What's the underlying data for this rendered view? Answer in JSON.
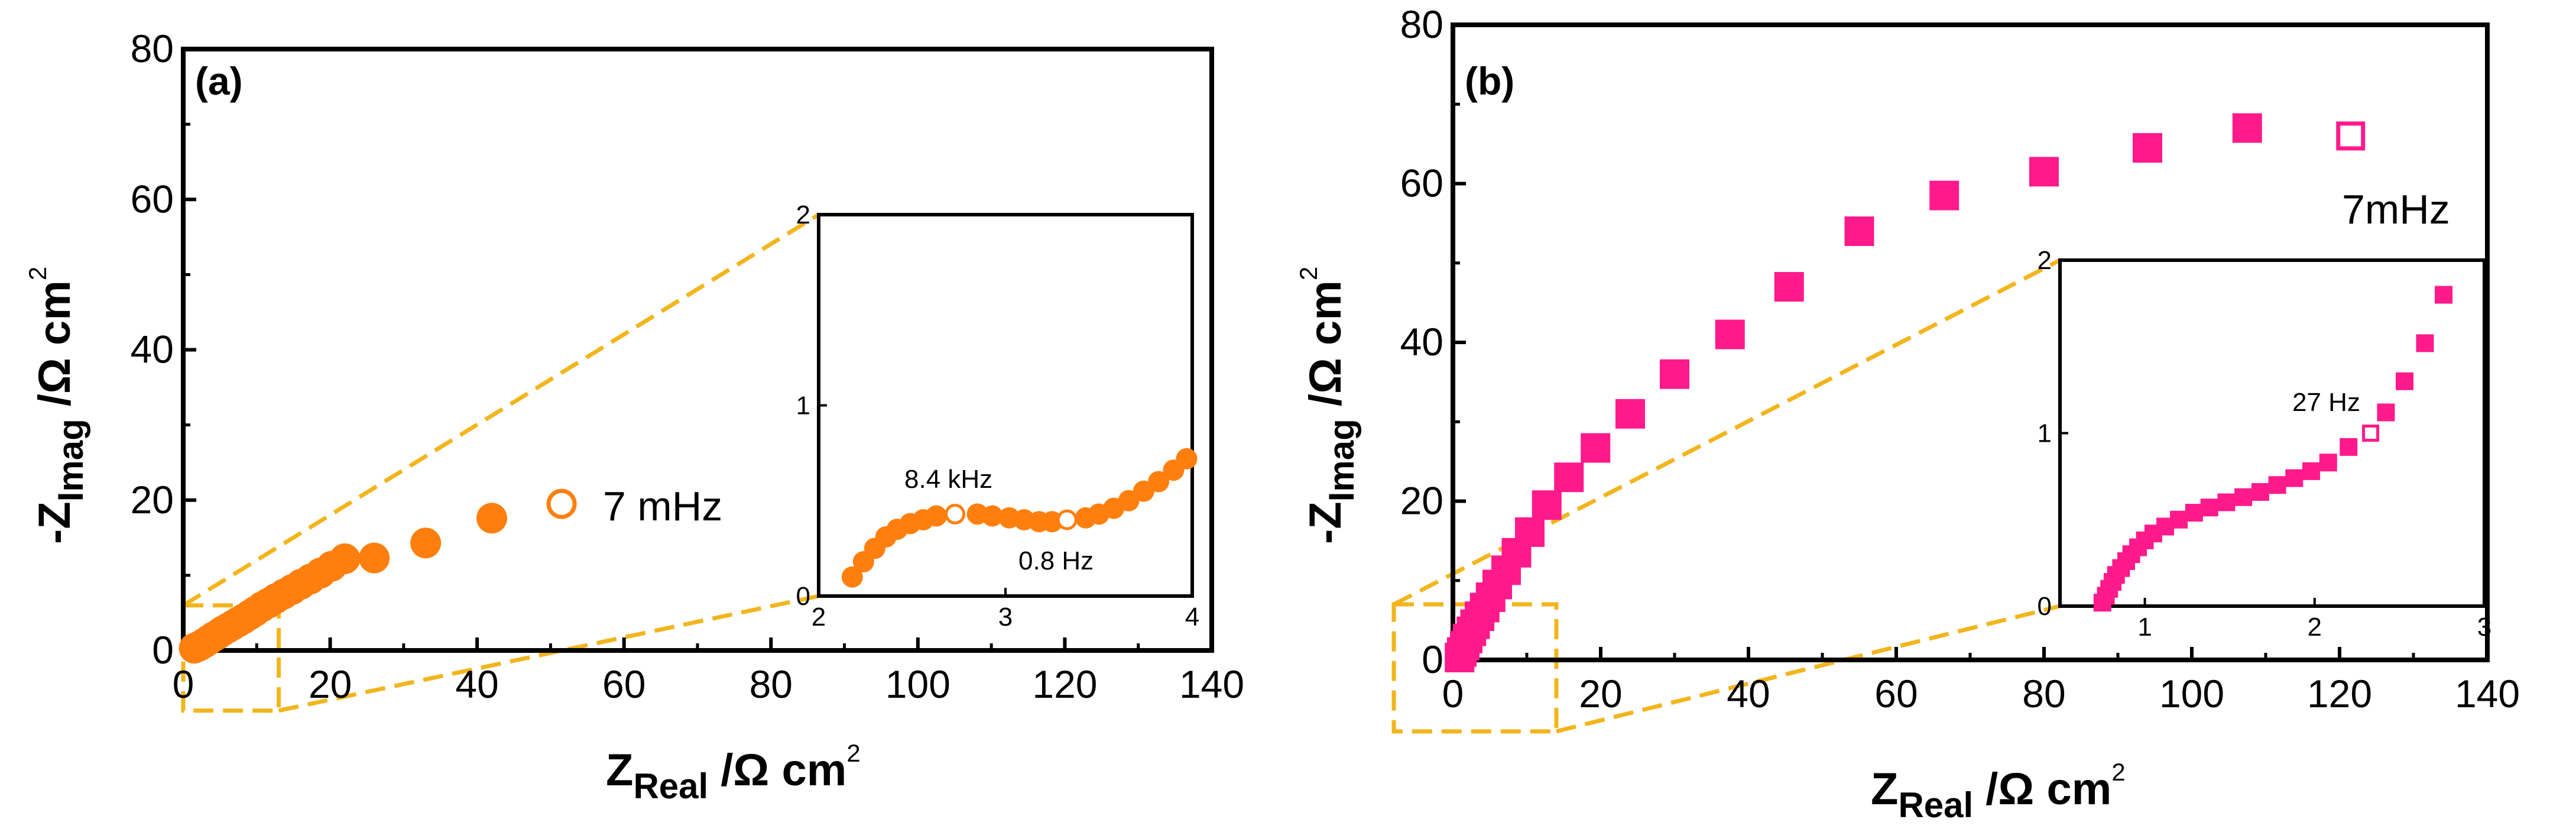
{
  "chart_data": [
    {
      "panel_label": "(a)",
      "type": "scatter",
      "marker": "circle",
      "color": "#FF7F0E",
      "xlabel_main": "Z",
      "xlabel_sub": "Real",
      "xlabel_unit": " /Ω cm",
      "xlabel_sup": "2",
      "ylabel_main": "-Z",
      "ylabel_sub": "Imag",
      "ylabel_unit": " /Ω cm",
      "ylabel_sup": "2",
      "xlim": [
        0,
        140
      ],
      "ylim": [
        0,
        80
      ],
      "x_ticks": [
        "0",
        "20",
        "40",
        "60",
        "80",
        "100",
        "120",
        "140"
      ],
      "y_ticks": [
        "0",
        "20",
        "40",
        "60",
        "80"
      ],
      "points": [
        [
          1.5,
          0.3
        ],
        [
          2.2,
          0.6
        ],
        [
          2.9,
          1.0
        ],
        [
          3.5,
          1.4
        ],
        [
          4.1,
          1.8
        ],
        [
          4.8,
          2.2
        ],
        [
          5.4,
          2.6
        ],
        [
          6.1,
          3.0
        ],
        [
          6.8,
          3.4
        ],
        [
          7.5,
          3.8
        ],
        [
          8.2,
          4.2
        ],
        [
          9.0,
          4.7
        ],
        [
          9.8,
          5.2
        ],
        [
          10.7,
          5.8
        ],
        [
          11.6,
          6.3
        ],
        [
          12.6,
          6.9
        ],
        [
          13.7,
          7.5
        ],
        [
          14.8,
          8.1
        ],
        [
          16.0,
          8.8
        ],
        [
          17.3,
          9.5
        ],
        [
          18.7,
          10.3
        ],
        [
          20.2,
          11.2
        ],
        [
          22.0,
          12.2
        ],
        [
          26.0,
          12.3
        ],
        [
          33.0,
          14.3
        ],
        [
          42.0,
          17.6
        ]
      ],
      "open_point": [
        51.5,
        19.5
      ],
      "open_point_label": "7 mHz",
      "zoom_box": {
        "xlim": [
          0,
          13
        ],
        "ylim": [
          -8,
          6
        ]
      },
      "inset": {
        "xlim": [
          2,
          4
        ],
        "ylim": [
          0,
          2
        ],
        "x_ticks": [
          "2",
          "3",
          "4"
        ],
        "y_ticks": [
          "0",
          "1",
          "2"
        ],
        "points": [
          [
            2.18,
            0.1
          ],
          [
            2.24,
            0.18
          ],
          [
            2.3,
            0.25
          ],
          [
            2.36,
            0.31
          ],
          [
            2.42,
            0.35
          ],
          [
            2.49,
            0.38
          ],
          [
            2.56,
            0.4
          ],
          [
            2.63,
            0.42
          ],
          [
            2.85,
            0.43
          ],
          [
            2.93,
            0.42
          ],
          [
            3.02,
            0.41
          ],
          [
            3.1,
            0.4
          ],
          [
            3.18,
            0.39
          ],
          [
            3.25,
            0.39
          ],
          [
            3.43,
            0.41
          ],
          [
            3.5,
            0.43
          ],
          [
            3.58,
            0.46
          ],
          [
            3.66,
            0.5
          ],
          [
            3.74,
            0.55
          ],
          [
            3.82,
            0.6
          ],
          [
            3.9,
            0.66
          ],
          [
            3.97,
            0.72
          ]
        ],
        "open_points": [
          [
            2.73,
            0.43
          ],
          [
            3.33,
            0.4
          ]
        ],
        "annotations": [
          "8.4 kHz",
          "0.8 Hz"
        ]
      }
    },
    {
      "panel_label": "(b)",
      "type": "scatter",
      "marker": "square",
      "color": "#FF1A8C",
      "xlabel_main": "Z",
      "xlabel_sub": "Real",
      "xlabel_unit": " /Ω cm",
      "xlabel_sup": "2",
      "ylabel_main": "-Z",
      "ylabel_sub": "Imag",
      "ylabel_unit": " /Ω cm",
      "ylabel_sup": "2",
      "xlim": [
        0,
        140
      ],
      "ylim": [
        0,
        80
      ],
      "x_ticks": [
        "0",
        "20",
        "40",
        "60",
        "80",
        "100",
        "120",
        "140"
      ],
      "y_ticks": [
        "0",
        "20",
        "40",
        "60",
        "80"
      ],
      "points": [
        [
          0.9,
          0.3
        ],
        [
          1.2,
          1.0
        ],
        [
          1.6,
          1.8
        ],
        [
          2.0,
          2.7
        ],
        [
          2.5,
          3.6
        ],
        [
          3.0,
          4.5
        ],
        [
          3.6,
          5.5
        ],
        [
          4.3,
          6.6
        ],
        [
          5.1,
          7.9
        ],
        [
          6.0,
          9.5
        ],
        [
          7.2,
          11.3
        ],
        [
          8.6,
          13.5
        ],
        [
          10.4,
          16.1
        ],
        [
          12.7,
          19.5
        ],
        [
          15.7,
          23.0
        ],
        [
          19.3,
          26.7
        ],
        [
          24.0,
          31.0
        ],
        [
          30.0,
          36.0
        ],
        [
          37.5,
          41.0
        ],
        [
          45.5,
          47.0
        ],
        [
          55.0,
          54.0
        ],
        [
          66.5,
          58.5
        ],
        [
          80.0,
          61.5
        ],
        [
          94.0,
          64.5
        ],
        [
          107.5,
          67.0
        ]
      ],
      "open_point": [
        121.5,
        66.0
      ],
      "open_point_label": "7mHz",
      "zoom_box": {
        "xlim": [
          -8,
          14
        ],
        "ylim": [
          -9,
          7
        ]
      },
      "inset": {
        "xlim": [
          0.5,
          3
        ],
        "ylim": [
          0,
          2
        ],
        "x_ticks": [
          "1",
          "2",
          "3"
        ],
        "y_ticks": [
          "0",
          "1",
          "2"
        ],
        "points": [
          [
            0.75,
            0.02
          ],
          [
            0.77,
            0.06
          ],
          [
            0.79,
            0.1
          ],
          [
            0.81,
            0.14
          ],
          [
            0.83,
            0.18
          ],
          [
            0.86,
            0.22
          ],
          [
            0.89,
            0.26
          ],
          [
            0.92,
            0.3
          ],
          [
            0.96,
            0.34
          ],
          [
            1.0,
            0.38
          ],
          [
            1.05,
            0.42
          ],
          [
            1.12,
            0.46
          ],
          [
            1.2,
            0.5
          ],
          [
            1.29,
            0.54
          ],
          [
            1.38,
            0.57
          ],
          [
            1.48,
            0.6
          ],
          [
            1.58,
            0.63
          ],
          [
            1.68,
            0.66
          ],
          [
            1.78,
            0.7
          ],
          [
            1.88,
            0.74
          ],
          [
            1.98,
            0.78
          ],
          [
            2.08,
            0.83
          ],
          [
            2.2,
            0.92
          ],
          [
            2.42,
            1.12
          ],
          [
            2.53,
            1.3
          ],
          [
            2.65,
            1.52
          ],
          [
            2.76,
            1.8
          ]
        ],
        "open_points": [
          [
            2.33,
            1.0
          ]
        ],
        "annotations": [
          "27 Hz"
        ]
      }
    }
  ]
}
